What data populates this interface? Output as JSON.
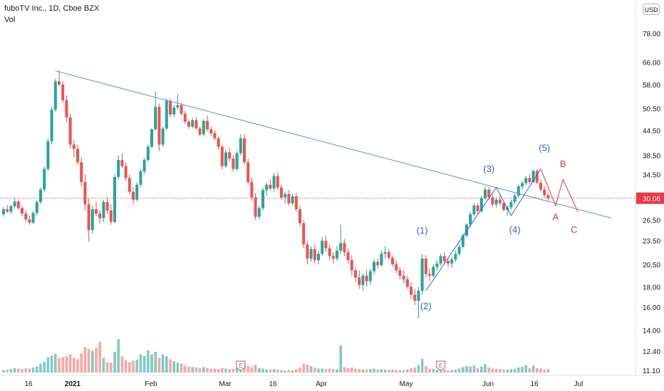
{
  "header": {
    "title": "fuboTV Inc., 1D, Cboe BZX",
    "volume_label": "Vol"
  },
  "currency": "USD",
  "colors": {
    "up": "#26a69a",
    "down": "#ef5350",
    "up_volume": "#80cbc4",
    "down_volume": "#f6a8a6",
    "trendline": "#5b8fe6",
    "wave_blue": "#2962ff",
    "wave_red": "#f23645",
    "price_line": "#f23645",
    "axis_text": "#131722"
  },
  "chart_data": {
    "type": "candlestick",
    "symbol": "fuboTV Inc.",
    "interval": "1D",
    "exchange": "Cboe BZX",
    "price_scale": "log",
    "y_ticks": [
      78.0,
      66.0,
      58.0,
      50.5,
      44.5,
      38.5,
      34.5,
      30.06,
      26.5,
      23.5,
      20.5,
      18.0,
      16.0,
      14.0,
      12.4,
      11.1
    ],
    "y_tick_labels": [
      "78.00",
      "66.00",
      "58.00",
      "50.50",
      "44.50",
      "38.50",
      "34.50",
      "30.06",
      "26.50",
      "23.50",
      "20.50",
      "18.00",
      "16.00",
      "14.00",
      "12.40",
      "11.10"
    ],
    "x_tick_labels": [
      "16",
      "2021",
      "Feb",
      "Mar",
      "16",
      "Apr",
      "May",
      "Jun",
      "16",
      "Jul"
    ],
    "last_price": 30.06,
    "last_price_label": "30.06",
    "candles": [
      [
        27.4,
        28.6,
        27.0,
        28.2,
        0.05
      ],
      [
        28.2,
        28.9,
        27.6,
        27.8,
        0.06
      ],
      [
        27.8,
        29.0,
        27.4,
        28.7,
        0.07
      ],
      [
        28.7,
        30.1,
        28.3,
        29.5,
        0.09
      ],
      [
        29.5,
        29.8,
        28.1,
        28.4,
        0.08
      ],
      [
        28.4,
        28.8,
        27.1,
        27.5,
        0.07
      ],
      [
        27.5,
        28.0,
        26.2,
        26.6,
        0.09
      ],
      [
        26.6,
        27.2,
        25.8,
        26.1,
        0.08
      ],
      [
        26.1,
        27.9,
        25.9,
        27.6,
        0.1
      ],
      [
        27.6,
        29.8,
        27.2,
        29.4,
        0.12
      ],
      [
        29.4,
        32.0,
        29.0,
        31.6,
        0.18
      ],
      [
        31.6,
        36.1,
        31.2,
        35.6,
        0.22
      ],
      [
        35.6,
        42.5,
        35.1,
        41.8,
        0.31
      ],
      [
        41.8,
        51.0,
        41.0,
        50.2,
        0.34
      ],
      [
        50.2,
        60.0,
        49.6,
        59.1,
        0.38
      ],
      [
        59.1,
        62.8,
        57.5,
        58.0,
        0.29
      ],
      [
        58.0,
        59.2,
        52.1,
        53.0,
        0.31
      ],
      [
        53.0,
        54.5,
        46.8,
        48.0,
        0.33
      ],
      [
        48.0,
        49.0,
        40.2,
        41.0,
        0.37
      ],
      [
        41.0,
        42.0,
        38.1,
        40.0,
        0.3
      ],
      [
        40.0,
        41.0,
        36.5,
        37.0,
        0.27
      ],
      [
        37.0,
        38.0,
        32.2,
        33.0,
        0.39
      ],
      [
        33.0,
        34.5,
        28.0,
        29.0,
        0.52
      ],
      [
        29.0,
        30.0,
        23.4,
        25.0,
        0.48
      ],
      [
        25.0,
        28.8,
        24.5,
        28.2,
        0.44
      ],
      [
        28.2,
        29.5,
        27.1,
        27.5,
        0.5
      ],
      [
        27.5,
        28.0,
        26.0,
        26.8,
        0.63
      ],
      [
        26.8,
        29.8,
        26.2,
        29.4,
        0.3
      ],
      [
        29.4,
        30.2,
        27.5,
        28.0,
        0.21
      ],
      [
        28.0,
        29.0,
        25.8,
        26.2,
        0.2
      ],
      [
        26.2,
        34.5,
        26.0,
        34.0,
        0.42
      ],
      [
        34.0,
        38.5,
        33.5,
        37.5,
        0.68
      ],
      [
        37.5,
        39.0,
        35.8,
        36.2,
        0.33
      ],
      [
        36.2,
        37.0,
        33.2,
        33.8,
        0.25
      ],
      [
        33.8,
        34.5,
        30.8,
        31.2,
        0.21
      ],
      [
        31.2,
        32.0,
        29.1,
        29.8,
        0.24
      ],
      [
        29.8,
        33.0,
        29.5,
        32.5,
        0.26
      ],
      [
        32.5,
        35.5,
        32.0,
        35.1,
        0.37
      ],
      [
        35.1,
        38.0,
        34.6,
        37.5,
        0.34
      ],
      [
        37.5,
        41.0,
        37.0,
        40.5,
        0.45
      ],
      [
        40.5,
        45.0,
        40.1,
        44.8,
        0.37
      ],
      [
        44.8,
        55.8,
        44.5,
        51.0,
        0.42
      ],
      [
        51.0,
        52.0,
        39.5,
        41.0,
        0.3
      ],
      [
        41.0,
        45.5,
        40.5,
        45.0,
        0.37
      ],
      [
        45.0,
        53.5,
        44.5,
        52.8,
        0.33
      ],
      [
        52.8,
        53.5,
        48.0,
        48.8,
        0.27
      ],
      [
        48.8,
        51.5,
        48.2,
        50.8,
        0.23
      ],
      [
        50.8,
        55.0,
        50.2,
        51.5,
        0.2
      ],
      [
        51.5,
        52.2,
        48.5,
        49.0,
        0.18
      ],
      [
        49.0,
        49.8,
        46.2,
        46.8,
        0.14
      ],
      [
        46.8,
        47.5,
        45.0,
        45.5,
        0.12
      ],
      [
        45.5,
        47.8,
        45.0,
        47.2,
        0.11
      ],
      [
        47.2,
        48.2,
        44.8,
        45.0,
        0.1
      ],
      [
        45.0,
        45.5,
        43.0,
        43.5,
        0.09
      ],
      [
        43.5,
        47.5,
        43.0,
        47.0,
        0.11
      ],
      [
        47.0,
        48.5,
        44.2,
        44.8,
        0.09
      ],
      [
        44.8,
        45.5,
        43.2,
        43.8,
        0.08
      ],
      [
        43.8,
        44.5,
        42.0,
        42.5,
        0.08
      ],
      [
        42.5,
        43.0,
        39.8,
        40.5,
        0.07
      ],
      [
        40.5,
        41.0,
        35.5,
        36.2,
        0.09
      ],
      [
        36.2,
        39.8,
        35.8,
        39.2,
        0.08
      ],
      [
        39.2,
        40.2,
        37.2,
        37.8,
        0.07
      ],
      [
        37.8,
        38.5,
        35.1,
        35.6,
        0.08
      ],
      [
        35.6,
        39.5,
        35.2,
        39.0,
        0.09
      ],
      [
        39.0,
        43.5,
        38.5,
        42.5,
        0.1
      ],
      [
        42.5,
        43.5,
        36.5,
        37.0,
        0.21
      ],
      [
        37.0,
        37.8,
        32.5,
        33.0,
        0.13
      ],
      [
        33.0,
        33.8,
        29.6,
        30.2,
        0.11
      ],
      [
        30.2,
        31.0,
        26.5,
        27.0,
        0.16
      ],
      [
        27.0,
        28.8,
        26.6,
        28.4,
        0.09
      ],
      [
        28.4,
        32.0,
        28.0,
        31.5,
        0.08
      ],
      [
        31.5,
        33.0,
        30.5,
        32.5,
        0.06
      ],
      [
        32.5,
        33.5,
        31.5,
        31.8,
        0.06
      ],
      [
        31.8,
        34.8,
        31.2,
        34.2,
        0.07
      ],
      [
        34.2,
        35.0,
        31.5,
        32.0,
        0.06
      ],
      [
        32.0,
        32.5,
        29.8,
        30.2,
        0.05
      ],
      [
        30.2,
        31.2,
        29.2,
        30.8,
        0.04
      ],
      [
        30.8,
        31.5,
        28.8,
        29.2,
        0.05
      ],
      [
        29.2,
        30.8,
        28.8,
        30.4,
        0.04
      ],
      [
        30.4,
        31.0,
        27.8,
        28.2,
        0.07
      ],
      [
        28.2,
        28.8,
        25.5,
        26.0,
        0.1
      ],
      [
        26.0,
        26.5,
        22.5,
        23.0,
        0.18
      ],
      [
        23.0,
        23.5,
        20.5,
        21.2,
        0.16
      ],
      [
        21.2,
        22.8,
        20.8,
        22.4,
        0.13
      ],
      [
        22.4,
        23.0,
        20.6,
        21.0,
        0.1
      ],
      [
        21.0,
        22.2,
        20.5,
        21.8,
        0.08
      ],
      [
        21.8,
        24.0,
        21.5,
        23.5,
        0.08
      ],
      [
        23.5,
        24.2,
        22.0,
        22.5,
        0.07
      ],
      [
        22.5,
        23.0,
        21.0,
        21.5,
        0.08
      ],
      [
        21.5,
        22.0,
        20.6,
        21.2,
        0.07
      ],
      [
        21.2,
        22.8,
        20.9,
        22.2,
        0.06
      ],
      [
        22.2,
        25.8,
        21.8,
        23.2,
        0.55
      ],
      [
        23.2,
        23.8,
        21.5,
        22.0,
        0.11
      ],
      [
        22.0,
        22.5,
        20.6,
        21.0,
        0.09
      ],
      [
        21.0,
        21.6,
        19.2,
        19.8,
        0.1
      ],
      [
        19.8,
        20.2,
        18.5,
        19.0,
        0.08
      ],
      [
        19.0,
        19.8,
        17.8,
        18.2,
        0.07
      ],
      [
        18.2,
        19.5,
        17.6,
        19.2,
        0.06
      ],
      [
        19.2,
        19.8,
        18.0,
        18.6,
        0.06
      ],
      [
        18.6,
        20.0,
        18.2,
        19.7,
        0.07
      ],
      [
        19.7,
        21.2,
        19.3,
        20.8,
        0.08
      ],
      [
        20.8,
        21.2,
        20.0,
        20.4,
        0.06
      ],
      [
        20.4,
        22.2,
        20.2,
        21.8,
        0.07
      ],
      [
        21.8,
        22.8,
        21.2,
        22.0,
        0.06
      ],
      [
        22.0,
        22.4,
        21.0,
        21.3,
        0.05
      ],
      [
        21.3,
        21.6,
        20.2,
        20.5,
        0.06
      ],
      [
        20.5,
        21.0,
        19.5,
        19.8,
        0.05
      ],
      [
        19.8,
        20.2,
        18.8,
        19.2,
        0.05
      ],
      [
        19.2,
        19.8,
        18.4,
        18.8,
        0.05
      ],
      [
        18.8,
        19.2,
        17.8,
        18.0,
        0.06
      ],
      [
        18.0,
        18.5,
        16.8,
        17.2,
        0.09
      ],
      [
        17.2,
        17.8,
        16.2,
        16.6,
        0.1
      ],
      [
        16.6,
        18.0,
        15.0,
        17.6,
        0.15
      ],
      [
        17.6,
        21.8,
        17.2,
        21.2,
        0.28
      ],
      [
        21.2,
        21.6,
        19.0,
        19.4,
        0.13
      ],
      [
        19.4,
        20.0,
        18.6,
        19.2,
        0.08
      ],
      [
        19.2,
        20.5,
        19.0,
        20.2,
        0.07
      ],
      [
        20.2,
        21.0,
        19.8,
        20.6,
        0.06
      ],
      [
        20.6,
        21.8,
        20.3,
        21.5,
        0.07
      ],
      [
        21.5,
        22.0,
        20.6,
        20.9,
        0.06
      ],
      [
        20.9,
        21.2,
        20.2,
        20.6,
        0.05
      ],
      [
        20.6,
        21.4,
        20.1,
        21.1,
        0.05
      ],
      [
        21.1,
        22.2,
        20.8,
        21.8,
        0.06
      ],
      [
        21.8,
        23.0,
        21.5,
        22.7,
        0.08
      ],
      [
        22.7,
        24.5,
        22.5,
        24.2,
        0.11
      ],
      [
        24.2,
        26.0,
        24.0,
        25.8,
        0.13
      ],
      [
        25.8,
        27.8,
        25.5,
        27.4,
        0.12
      ],
      [
        27.4,
        29.2,
        27.1,
        28.8,
        0.14
      ],
      [
        28.8,
        29.2,
        27.5,
        27.9,
        0.09
      ],
      [
        27.9,
        30.5,
        27.6,
        30.1,
        0.12
      ],
      [
        30.1,
        32.2,
        29.8,
        31.6,
        0.17
      ],
      [
        31.6,
        32.0,
        29.8,
        30.2,
        0.1
      ],
      [
        30.2,
        30.8,
        28.6,
        29.0,
        0.08
      ],
      [
        29.0,
        30.2,
        28.5,
        29.8,
        0.07
      ],
      [
        29.8,
        30.5,
        28.8,
        29.2,
        0.07
      ],
      [
        29.2,
        29.5,
        27.8,
        28.1,
        0.06
      ],
      [
        28.1,
        28.8,
        27.2,
        28.5,
        0.06
      ],
      [
        28.5,
        29.8,
        28.1,
        29.4,
        0.07
      ],
      [
        29.4,
        30.8,
        29.0,
        30.5,
        0.08
      ],
      [
        30.5,
        32.5,
        30.2,
        32.2,
        0.1
      ],
      [
        32.2,
        33.2,
        31.6,
        32.8,
        0.11
      ],
      [
        32.8,
        34.2,
        32.4,
        33.8,
        0.15
      ],
      [
        33.8,
        34.5,
        32.6,
        33.0,
        0.09
      ],
      [
        33.0,
        35.5,
        32.8,
        35.2,
        0.14
      ],
      [
        35.2,
        35.6,
        32.6,
        32.9,
        0.09
      ],
      [
        32.9,
        33.5,
        31.2,
        31.6,
        0.08
      ],
      [
        31.6,
        32.2,
        30.2,
        30.6,
        0.06
      ],
      [
        30.6,
        31.0,
        29.6,
        30.06,
        0.07
      ]
    ],
    "trendline": {
      "from": {
        "x_index": 14,
        "price": 62.8
      },
      "to": {
        "x_index": 164,
        "price": 26.8
      }
    },
    "wave_labels": [
      {
        "text": "(1)",
        "x_index": 113,
        "price": 24.5,
        "color": "blue"
      },
      {
        "text": "(2)",
        "x_index": 114,
        "price": 15.8,
        "color": "blue"
      },
      {
        "text": "(3)",
        "x_index": 131,
        "price": 35.0,
        "color": "blue"
      },
      {
        "text": "(4)",
        "x_index": 138,
        "price": 24.6,
        "color": "blue"
      },
      {
        "text": "(5)",
        "x_index": 146,
        "price": 39.5,
        "color": "blue"
      },
      {
        "text": "B",
        "x_index": 151,
        "price": 36.0,
        "color": "red"
      },
      {
        "text": "A",
        "x_index": 149,
        "price": 26.5,
        "color": "red"
      },
      {
        "text": "C",
        "x_index": 154,
        "price": 24.6,
        "color": "red"
      }
    ],
    "earnings_markers": [
      "E",
      "E"
    ]
  }
}
